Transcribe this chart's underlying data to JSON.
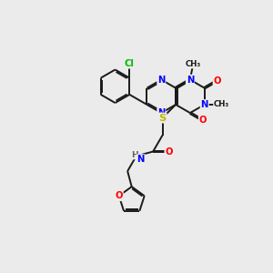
{
  "background_color": "#ebebeb",
  "bond_color": "#1a1a1a",
  "lw": 1.4,
  "atom_colors": {
    "N": "#0000ff",
    "O": "#ff0000",
    "S": "#bbbb00",
    "Cl": "#00bb00",
    "C": "#1a1a1a",
    "H": "#666666"
  },
  "figsize": [
    3.0,
    3.0
  ],
  "dpi": 100
}
